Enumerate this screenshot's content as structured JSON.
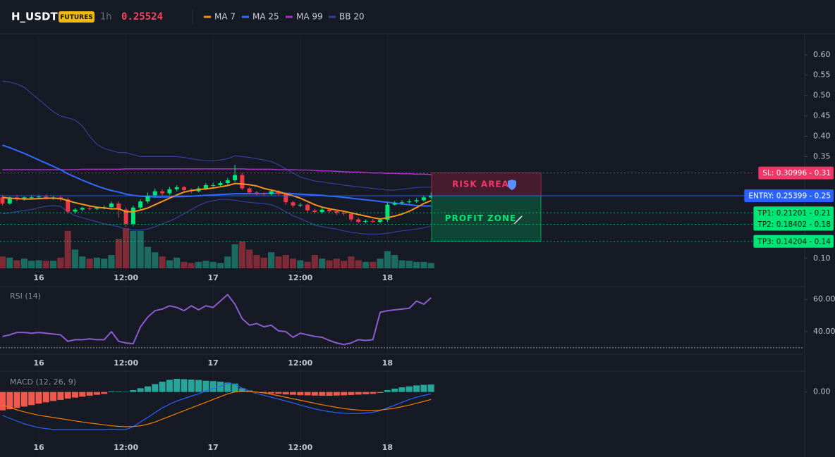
{
  "header": {
    "symbol": "H_USDT",
    "badge": "FUTURES",
    "interval": "1h",
    "price": 0.25524
  },
  "chart_data": [
    {
      "type": "candlestick",
      "categories": [
        null,
        null,
        null,
        null,
        null,
        "16",
        null,
        null,
        null,
        null,
        null,
        null,
        null,
        null,
        null,
        null,
        null,
        "12:00",
        null,
        null,
        null,
        null,
        null,
        null,
        null,
        null,
        null,
        null,
        null,
        "17",
        null,
        null,
        null,
        null,
        null,
        null,
        null,
        null,
        null,
        null,
        null,
        "12:00",
        null,
        null,
        null,
        null,
        null,
        null,
        null,
        null,
        null,
        null,
        null,
        "18",
        null,
        null,
        null,
        null,
        null,
        null
      ],
      "open": [
        0.25,
        0.235,
        0.25,
        0.245,
        0.25,
        0.25,
        0.252,
        0.248,
        0.25,
        0.245,
        0.215,
        0.22,
        0.224,
        0.222,
        0.225,
        0.226,
        0.235,
        0.22,
        0.185,
        0.225,
        0.24,
        0.255,
        0.265,
        0.26,
        0.27,
        0.275,
        0.268,
        0.265,
        0.272,
        0.28,
        0.28,
        0.285,
        0.292,
        0.305,
        0.272,
        0.262,
        0.26,
        0.258,
        0.265,
        0.258,
        0.238,
        0.23,
        0.232,
        0.218,
        0.214,
        0.22,
        0.216,
        0.212,
        0.21,
        0.196,
        0.19,
        0.192,
        0.19,
        0.195,
        0.232,
        0.236,
        0.238,
        0.24,
        0.243,
        0.25
      ],
      "high": [
        0.256,
        0.252,
        0.256,
        0.252,
        0.256,
        0.256,
        0.257,
        0.253,
        0.254,
        0.25,
        0.224,
        0.227,
        0.229,
        0.227,
        0.23,
        0.24,
        0.24,
        0.225,
        0.23,
        0.245,
        0.262,
        0.272,
        0.27,
        0.276,
        0.28,
        0.278,
        0.272,
        0.277,
        0.285,
        0.286,
        0.29,
        0.298,
        0.33,
        0.31,
        0.276,
        0.266,
        0.263,
        0.27,
        0.268,
        0.26,
        0.242,
        0.236,
        0.235,
        0.222,
        0.224,
        0.224,
        0.22,
        0.216,
        0.213,
        0.2,
        0.196,
        0.197,
        0.198,
        0.238,
        0.241,
        0.243,
        0.245,
        0.248,
        0.255,
        0.262
      ],
      "low": [
        0.23,
        0.232,
        0.241,
        0.242,
        0.245,
        0.246,
        0.245,
        0.244,
        0.24,
        0.21,
        0.21,
        0.216,
        0.218,
        0.219,
        0.22,
        0.222,
        0.2,
        0.178,
        0.18,
        0.22,
        0.235,
        0.25,
        0.255,
        0.256,
        0.265,
        0.264,
        0.26,
        0.262,
        0.268,
        0.275,
        0.276,
        0.281,
        0.288,
        0.268,
        0.258,
        0.255,
        0.253,
        0.255,
        0.254,
        0.232,
        0.225,
        0.226,
        0.212,
        0.21,
        0.21,
        0.211,
        0.207,
        0.205,
        0.19,
        0.186,
        0.186,
        0.187,
        0.186,
        0.19,
        0.23,
        0.232,
        0.235,
        0.237,
        0.24,
        0.247
      ],
      "close": [
        0.235,
        0.25,
        0.245,
        0.25,
        0.25,
        0.252,
        0.248,
        0.25,
        0.245,
        0.215,
        0.22,
        0.224,
        0.222,
        0.225,
        0.226,
        0.235,
        0.22,
        0.185,
        0.225,
        0.24,
        0.255,
        0.265,
        0.26,
        0.27,
        0.275,
        0.268,
        0.265,
        0.272,
        0.28,
        0.28,
        0.285,
        0.292,
        0.305,
        0.272,
        0.262,
        0.26,
        0.258,
        0.265,
        0.258,
        0.238,
        0.23,
        0.232,
        0.218,
        0.214,
        0.22,
        0.216,
        0.212,
        0.21,
        0.196,
        0.19,
        0.192,
        0.19,
        0.195,
        0.232,
        0.236,
        0.238,
        0.24,
        0.243,
        0.25,
        0.25524
      ],
      "up_color": "#00e676",
      "down_color": "#f23645",
      "volume": {
        "values": [
          22,
          20,
          15,
          18,
          14,
          15,
          14,
          14,
          20,
          70,
          35,
          22,
          18,
          20,
          18,
          25,
          55,
          75,
          70,
          70,
          40,
          30,
          22,
          15,
          20,
          12,
          10,
          12,
          14,
          12,
          10,
          22,
          45,
          50,
          35,
          25,
          20,
          30,
          22,
          25,
          18,
          15,
          12,
          25,
          18,
          15,
          18,
          14,
          22,
          15,
          12,
          12,
          18,
          32,
          25,
          15,
          14,
          12,
          12,
          10
        ],
        "up_color": "#1d6b60",
        "down_color": "#7c2b37"
      },
      "series": [
        {
          "name": "MA 7",
          "color": "#f7931a",
          "values": [
            0.25,
            0.248,
            0.247,
            0.246,
            0.246,
            0.247,
            0.248,
            0.248,
            0.247,
            0.242,
            0.237,
            0.233,
            0.229,
            0.226,
            0.224,
            0.222,
            0.222,
            0.215,
            0.215,
            0.219,
            0.224,
            0.232,
            0.24,
            0.248,
            0.256,
            0.263,
            0.267,
            0.269,
            0.271,
            0.273,
            0.276,
            0.279,
            0.284,
            0.283,
            0.281,
            0.278,
            0.272,
            0.268,
            0.264,
            0.259,
            0.254,
            0.248,
            0.24,
            0.232,
            0.226,
            0.222,
            0.219,
            0.216,
            0.212,
            0.208,
            0.204,
            0.2,
            0.197,
            0.2,
            0.204,
            0.209,
            0.216,
            0.225,
            0.235,
            0.242
          ]
        },
        {
          "name": "MA 25",
          "color": "#2f6bff",
          "values": [
            0.378,
            0.372,
            0.365,
            0.358,
            0.35,
            0.342,
            0.334,
            0.326,
            0.318,
            0.308,
            0.3,
            0.292,
            0.285,
            0.278,
            0.272,
            0.267,
            0.263,
            0.258,
            0.255,
            0.253,
            0.252,
            0.251,
            0.251,
            0.251,
            0.252,
            0.252,
            0.253,
            0.254,
            0.255,
            0.256,
            0.257,
            0.258,
            0.259,
            0.259,
            0.259,
            0.259,
            0.259,
            0.26,
            0.26,
            0.26,
            0.259,
            0.258,
            0.257,
            0.256,
            0.255,
            0.253,
            0.252,
            0.25,
            0.248,
            0.246,
            0.244,
            0.242,
            0.24,
            0.238,
            0.236,
            0.234,
            0.232,
            0.23,
            0.229,
            0.229
          ]
        },
        {
          "name": "MA 99",
          "color": "#a62fc2",
          "values": [
            0.318,
            0.318,
            0.318,
            0.318,
            0.318,
            0.318,
            0.318,
            0.318,
            0.318,
            0.318,
            0.318,
            0.319,
            0.319,
            0.319,
            0.319,
            0.319,
            0.319,
            0.32,
            0.32,
            0.32,
            0.32,
            0.32,
            0.32,
            0.32,
            0.32,
            0.32,
            0.32,
            0.32,
            0.32,
            0.32,
            0.32,
            0.32,
            0.32,
            0.32,
            0.319,
            0.319,
            0.319,
            0.319,
            0.318,
            0.318,
            0.318,
            0.317,
            0.317,
            0.316,
            0.315,
            0.315,
            0.314,
            0.313,
            0.312,
            0.312,
            0.311,
            0.31,
            0.31,
            0.309,
            0.309,
            0.308,
            0.308,
            0.307,
            0.307,
            0.306
          ]
        },
        {
          "name": "BB 20",
          "color": "#34409a",
          "upper": [
            0.535,
            0.533,
            0.528,
            0.52,
            0.505,
            0.49,
            0.475,
            0.46,
            0.45,
            0.445,
            0.44,
            0.425,
            0.4,
            0.38,
            0.37,
            0.365,
            0.36,
            0.36,
            0.355,
            0.35,
            0.35,
            0.35,
            0.35,
            0.35,
            0.35,
            0.348,
            0.345,
            0.342,
            0.34,
            0.34,
            0.342,
            0.345,
            0.352,
            0.35,
            0.348,
            0.345,
            0.342,
            0.338,
            0.33,
            0.32,
            0.31,
            0.3,
            0.295,
            0.29,
            0.288,
            0.285,
            0.283,
            0.28,
            0.278,
            0.276,
            0.274,
            0.272,
            0.27,
            0.268,
            0.268,
            0.27,
            0.272,
            0.274,
            0.275,
            0.275
          ],
          "lower": [
            0.21,
            0.212,
            0.215,
            0.218,
            0.22,
            0.225,
            0.228,
            0.23,
            0.228,
            0.215,
            0.205,
            0.2,
            0.195,
            0.19,
            0.185,
            0.182,
            0.178,
            0.172,
            0.17,
            0.17,
            0.172,
            0.178,
            0.185,
            0.192,
            0.2,
            0.21,
            0.22,
            0.23,
            0.238,
            0.242,
            0.245,
            0.245,
            0.243,
            0.24,
            0.238,
            0.236,
            0.235,
            0.232,
            0.225,
            0.215,
            0.205,
            0.198,
            0.19,
            0.182,
            0.178,
            0.175,
            0.172,
            0.168,
            0.164,
            0.162,
            0.16,
            0.16,
            0.16,
            0.162,
            0.165,
            0.168,
            0.17,
            0.172,
            0.175,
            0.18
          ]
        }
      ],
      "ylim": [
        0.076,
        0.648
      ],
      "yticks": [
        {
          "value": 0.6,
          "label": "0.60"
        },
        0.55,
        {
          "value": 0.5,
          "label": "0.50"
        },
        0.45,
        {
          "value": 0.4,
          "label": "0.40"
        },
        0.35,
        {
          "value": 0.1,
          "label": "0.10"
        }
      ],
      "levels": [
        {
          "label": "SL: 0.30996 - 0.31",
          "value": 0.30996,
          "color": "#f23668",
          "text_color": "#ffffff",
          "line": "dotted"
        },
        {
          "label": "ENTRY: 0.25399 - 0.25",
          "value": 0.25399,
          "color": "#2962ff",
          "text_color": "#ffffff",
          "line": "solid"
        },
        {
          "label": "TP1: 0.21201 - 0.21",
          "value": 0.21201,
          "color": "#00e676",
          "text_color": "#0b1a12",
          "line": "dotted"
        },
        {
          "label": "TP2: 0.18402 - 0.18",
          "value": 0.18402,
          "color": "#00e676",
          "text_color": "#0b1a12",
          "line": "dotted"
        },
        {
          "label": "TP3: 0.14204 - 0.14",
          "value": 0.14204,
          "color": "#00e676",
          "text_color": "#0b1a12",
          "line": "dotted"
        }
      ],
      "zones": [
        {
          "label": "RISK AREA",
          "color": "#f23668",
          "fill": "#4a1d30"
        },
        {
          "label": "PROFIT ZONE",
          "color": "#00e676",
          "fill": "#0d4a37"
        }
      ]
    },
    {
      "type": "line",
      "title": "RSI (14)",
      "series": [
        {
          "color": "#8a5cd0",
          "values": [
            37,
            38,
            39.5,
            39.5,
            39,
            39.5,
            39,
            38.5,
            38,
            34,
            35,
            35,
            35.5,
            35,
            35,
            40,
            34,
            33,
            32.5,
            43,
            49,
            53,
            54,
            56,
            55,
            53,
            56,
            53.5,
            56,
            55,
            59,
            63,
            57,
            48,
            44,
            45,
            43,
            44,
            40.5,
            40,
            36.5,
            39,
            38,
            37,
            36.5,
            34.5,
            33,
            32,
            33,
            35,
            34.5,
            35,
            52,
            53,
            53.5,
            54,
            54.5,
            59,
            57,
            61
          ]
        }
      ],
      "ylim": [
        26,
        67.5
      ],
      "yticks": [
        {
          "value": 60,
          "label": "60.00"
        },
        {
          "value": 40,
          "label": "40.00"
        }
      ],
      "hlines": [
        30
      ]
    },
    {
      "type": "macd",
      "title": "MACD (12, 26, 9)",
      "histogram": {
        "values": [
          -0.0098,
          -0.0092,
          -0.0085,
          -0.0078,
          -0.007,
          -0.0062,
          -0.0055,
          -0.0048,
          -0.0042,
          -0.0035,
          -0.003,
          -0.0025,
          -0.002,
          -0.0015,
          -0.001,
          0.0004,
          0.0003,
          0.0002,
          0.001,
          0.002,
          0.003,
          0.0042,
          0.0055,
          0.0065,
          0.007,
          0.0068,
          0.0066,
          0.0064,
          0.006,
          0.0058,
          0.0055,
          0.005,
          0.0045,
          0.002,
          0.0008,
          -0.0003,
          -0.0006,
          -0.0008,
          -0.001,
          -0.0013,
          -0.0015,
          -0.0017,
          -0.0018,
          -0.0019,
          -0.002,
          -0.002,
          -0.0019,
          -0.0018,
          -0.0016,
          -0.0014,
          -0.0012,
          -0.001,
          -0.0005,
          0.001,
          0.0018,
          0.0025,
          0.003,
          0.0035,
          0.0038,
          0.004
        ],
        "up_color": "#26a69a",
        "down_color": "#f0584d"
      },
      "series": [
        {
          "color": "#2962ff",
          "values": [
            -0.0125,
            -0.014,
            -0.0155,
            -0.017,
            -0.018,
            -0.019,
            -0.0195,
            -0.02,
            -0.02,
            -0.02,
            -0.02,
            -0.02,
            -0.02,
            -0.02,
            -0.02,
            -0.0198,
            -0.02,
            -0.02,
            -0.0185,
            -0.016,
            -0.0135,
            -0.011,
            -0.0085,
            -0.0065,
            -0.0048,
            -0.0035,
            -0.0022,
            -0.001,
            0.0005,
            0.0018,
            0.003,
            0.0045,
            0.0042,
            0.002,
            0.0005,
            -0.0008,
            -0.0018,
            -0.0028,
            -0.0038,
            -0.0048,
            -0.0058,
            -0.007,
            -0.008,
            -0.009,
            -0.0098,
            -0.0105,
            -0.011,
            -0.0113,
            -0.0115,
            -0.0115,
            -0.0112,
            -0.0108,
            -0.01,
            -0.0085,
            -0.007,
            -0.0055,
            -0.004,
            -0.0028,
            -0.0018,
            -0.001
          ]
        },
        {
          "color": "#f57c00",
          "values": [
            -0.0068,
            -0.0082,
            -0.0095,
            -0.0106,
            -0.0115,
            -0.0124,
            -0.013,
            -0.0136,
            -0.0142,
            -0.0148,
            -0.0154,
            -0.016,
            -0.0165,
            -0.017,
            -0.0175,
            -0.018,
            -0.0183,
            -0.0185,
            -0.0184,
            -0.018,
            -0.0172,
            -0.016,
            -0.0145,
            -0.013,
            -0.0115,
            -0.01,
            -0.0085,
            -0.007,
            -0.0055,
            -0.004,
            -0.0025,
            -0.001,
            0,
            0.0003,
            0.0002,
            0,
            -0.0005,
            -0.0012,
            -0.002,
            -0.0028,
            -0.0036,
            -0.0044,
            -0.0052,
            -0.006,
            -0.0068,
            -0.0075,
            -0.0082,
            -0.0088,
            -0.0093,
            -0.0096,
            -0.0098,
            -0.0098,
            -0.0096,
            -0.0092,
            -0.0086,
            -0.0078,
            -0.007,
            -0.006,
            -0.005,
            -0.004
          ]
        }
      ],
      "ylim": [
        -0.0275,
        0.01
      ],
      "yticks": [
        {
          "value": 0,
          "label": "0.00"
        }
      ]
    }
  ]
}
